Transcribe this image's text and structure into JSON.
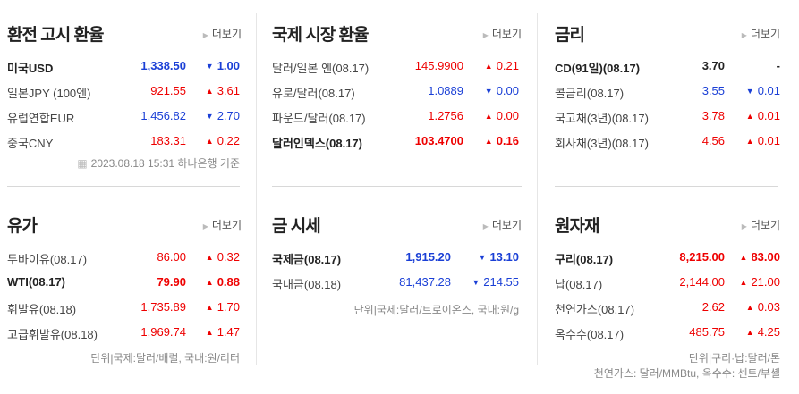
{
  "more_label": "더보기",
  "colors": {
    "up": "#ee0000",
    "down": "#1a3fd6"
  },
  "panels": [
    {
      "id": "exchange",
      "title": "환전 고시 환율",
      "rows": [
        {
          "name": "미국USD",
          "value": "1,338.50",
          "change": "1.00",
          "dir": "down",
          "bold": true
        },
        {
          "name": "일본JPY (100엔)",
          "value": "921.55",
          "change": "3.61",
          "dir": "up"
        },
        {
          "name": "유럽연합EUR",
          "value": "1,456.82",
          "change": "2.70",
          "dir": "down"
        },
        {
          "name": "중국CNY",
          "value": "183.31",
          "change": "0.22",
          "dir": "up"
        }
      ],
      "note": [
        "2023.08.18 15:31 하나은행 기준"
      ]
    },
    {
      "id": "intl",
      "title": "국제 시장 환율",
      "rows": [
        {
          "name": "달러/일본 엔(08.17)",
          "value": "145.9900",
          "change": "0.21",
          "dir": "up"
        },
        {
          "name": "유로/달러(08.17)",
          "value": "1.0889",
          "change": "0.00",
          "dir": "down"
        },
        {
          "name": "파운드/달러(08.17)",
          "value": "1.2756",
          "change": "0.00",
          "dir": "up"
        },
        {
          "name": "달러인덱스(08.17)",
          "value": "103.4700",
          "change": "0.16",
          "dir": "up",
          "bold": true
        }
      ]
    },
    {
      "id": "rate",
      "title": "금리",
      "rows": [
        {
          "name": "CD(91일)(08.17)",
          "value": "3.70",
          "change": "-",
          "dir": "flat",
          "bold": true
        },
        {
          "name": "콜금리(08.17)",
          "value": "3.55",
          "change": "0.01",
          "dir": "down"
        },
        {
          "name": "국고채(3년)(08.17)",
          "value": "3.78",
          "change": "0.01",
          "dir": "up"
        },
        {
          "name": "회사채(3년)(08.17)",
          "value": "4.56",
          "change": "0.01",
          "dir": "up"
        }
      ]
    },
    {
      "id": "oil",
      "title": "유가",
      "rows": [
        {
          "name": "두바이유(08.17)",
          "value": "86.00",
          "change": "0.32",
          "dir": "up"
        },
        {
          "name": "WTI(08.17)",
          "value": "79.90",
          "change": "0.88",
          "dir": "up",
          "bold": true
        },
        {
          "name": "휘발유(08.18)",
          "value": "1,735.89",
          "change": "1.70",
          "dir": "up"
        },
        {
          "name": "고급휘발유(08.18)",
          "value": "1,969.74",
          "change": "1.47",
          "dir": "up"
        }
      ],
      "note": [
        "단위|국제:달러/배럴,  국내:원/리터"
      ]
    },
    {
      "id": "gold",
      "title": "금 시세",
      "rows": [
        {
          "name": "국제금(08.17)",
          "value": "1,915.20",
          "change": "13.10",
          "dir": "down",
          "bold": true
        },
        {
          "name": "국내금(08.18)",
          "value": "81,437.28",
          "change": "214.55",
          "dir": "down"
        }
      ],
      "note": [
        "단위|국제:달러/트로이온스,  국내:원/g"
      ]
    },
    {
      "id": "raw",
      "title": "원자재",
      "rows": [
        {
          "name": "구리(08.17)",
          "value": "8,215.00",
          "change": "83.00",
          "dir": "up",
          "bold": true
        },
        {
          "name": "납(08.17)",
          "value": "2,144.00",
          "change": "21.00",
          "dir": "up"
        },
        {
          "name": "천연가스(08.17)",
          "value": "2.62",
          "change": "0.03",
          "dir": "up"
        },
        {
          "name": "옥수수(08.17)",
          "value": "485.75",
          "change": "4.25",
          "dir": "up"
        }
      ],
      "note": [
        "단위|구리·납:달러/톤",
        "천연가스: 달러/MMBtu, 옥수수: 센트/부셸"
      ]
    }
  ]
}
